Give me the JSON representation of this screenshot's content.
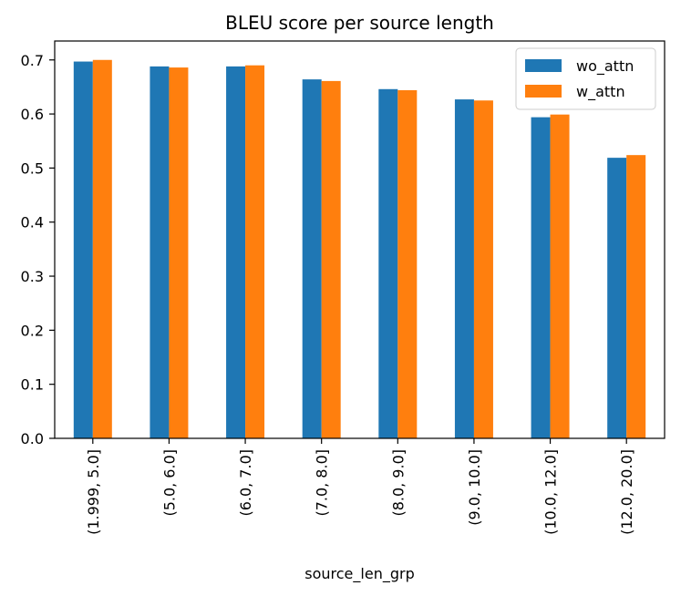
{
  "chart_data": {
    "type": "bar",
    "title": "BLEU score per source length",
    "xlabel": "source_len_grp",
    "ylabel": "",
    "categories": [
      "(1.999, 5.0]",
      "(5.0, 6.0]",
      "(6.0, 7.0]",
      "(7.0, 8.0]",
      "(8.0, 9.0]",
      "(9.0, 10.0]",
      "(10.0, 12.0]",
      "(12.0, 20.0]"
    ],
    "series": [
      {
        "name": "wo_attn",
        "color": "#1f77b4",
        "values": [
          0.697,
          0.688,
          0.688,
          0.664,
          0.646,
          0.627,
          0.594,
          0.519
        ]
      },
      {
        "name": "w_attn",
        "color": "#ff7f0e",
        "values": [
          0.7,
          0.686,
          0.69,
          0.661,
          0.644,
          0.625,
          0.599,
          0.524
        ]
      }
    ],
    "ylim": [
      0,
      0.735
    ],
    "yticks": [
      0.0,
      0.1,
      0.2,
      0.3,
      0.4,
      0.5,
      0.6,
      0.7
    ],
    "ytick_labels": [
      "0.0",
      "0.1",
      "0.2",
      "0.3",
      "0.4",
      "0.5",
      "0.6",
      "0.7"
    ],
    "grid": false,
    "legend_position": "top-right"
  }
}
